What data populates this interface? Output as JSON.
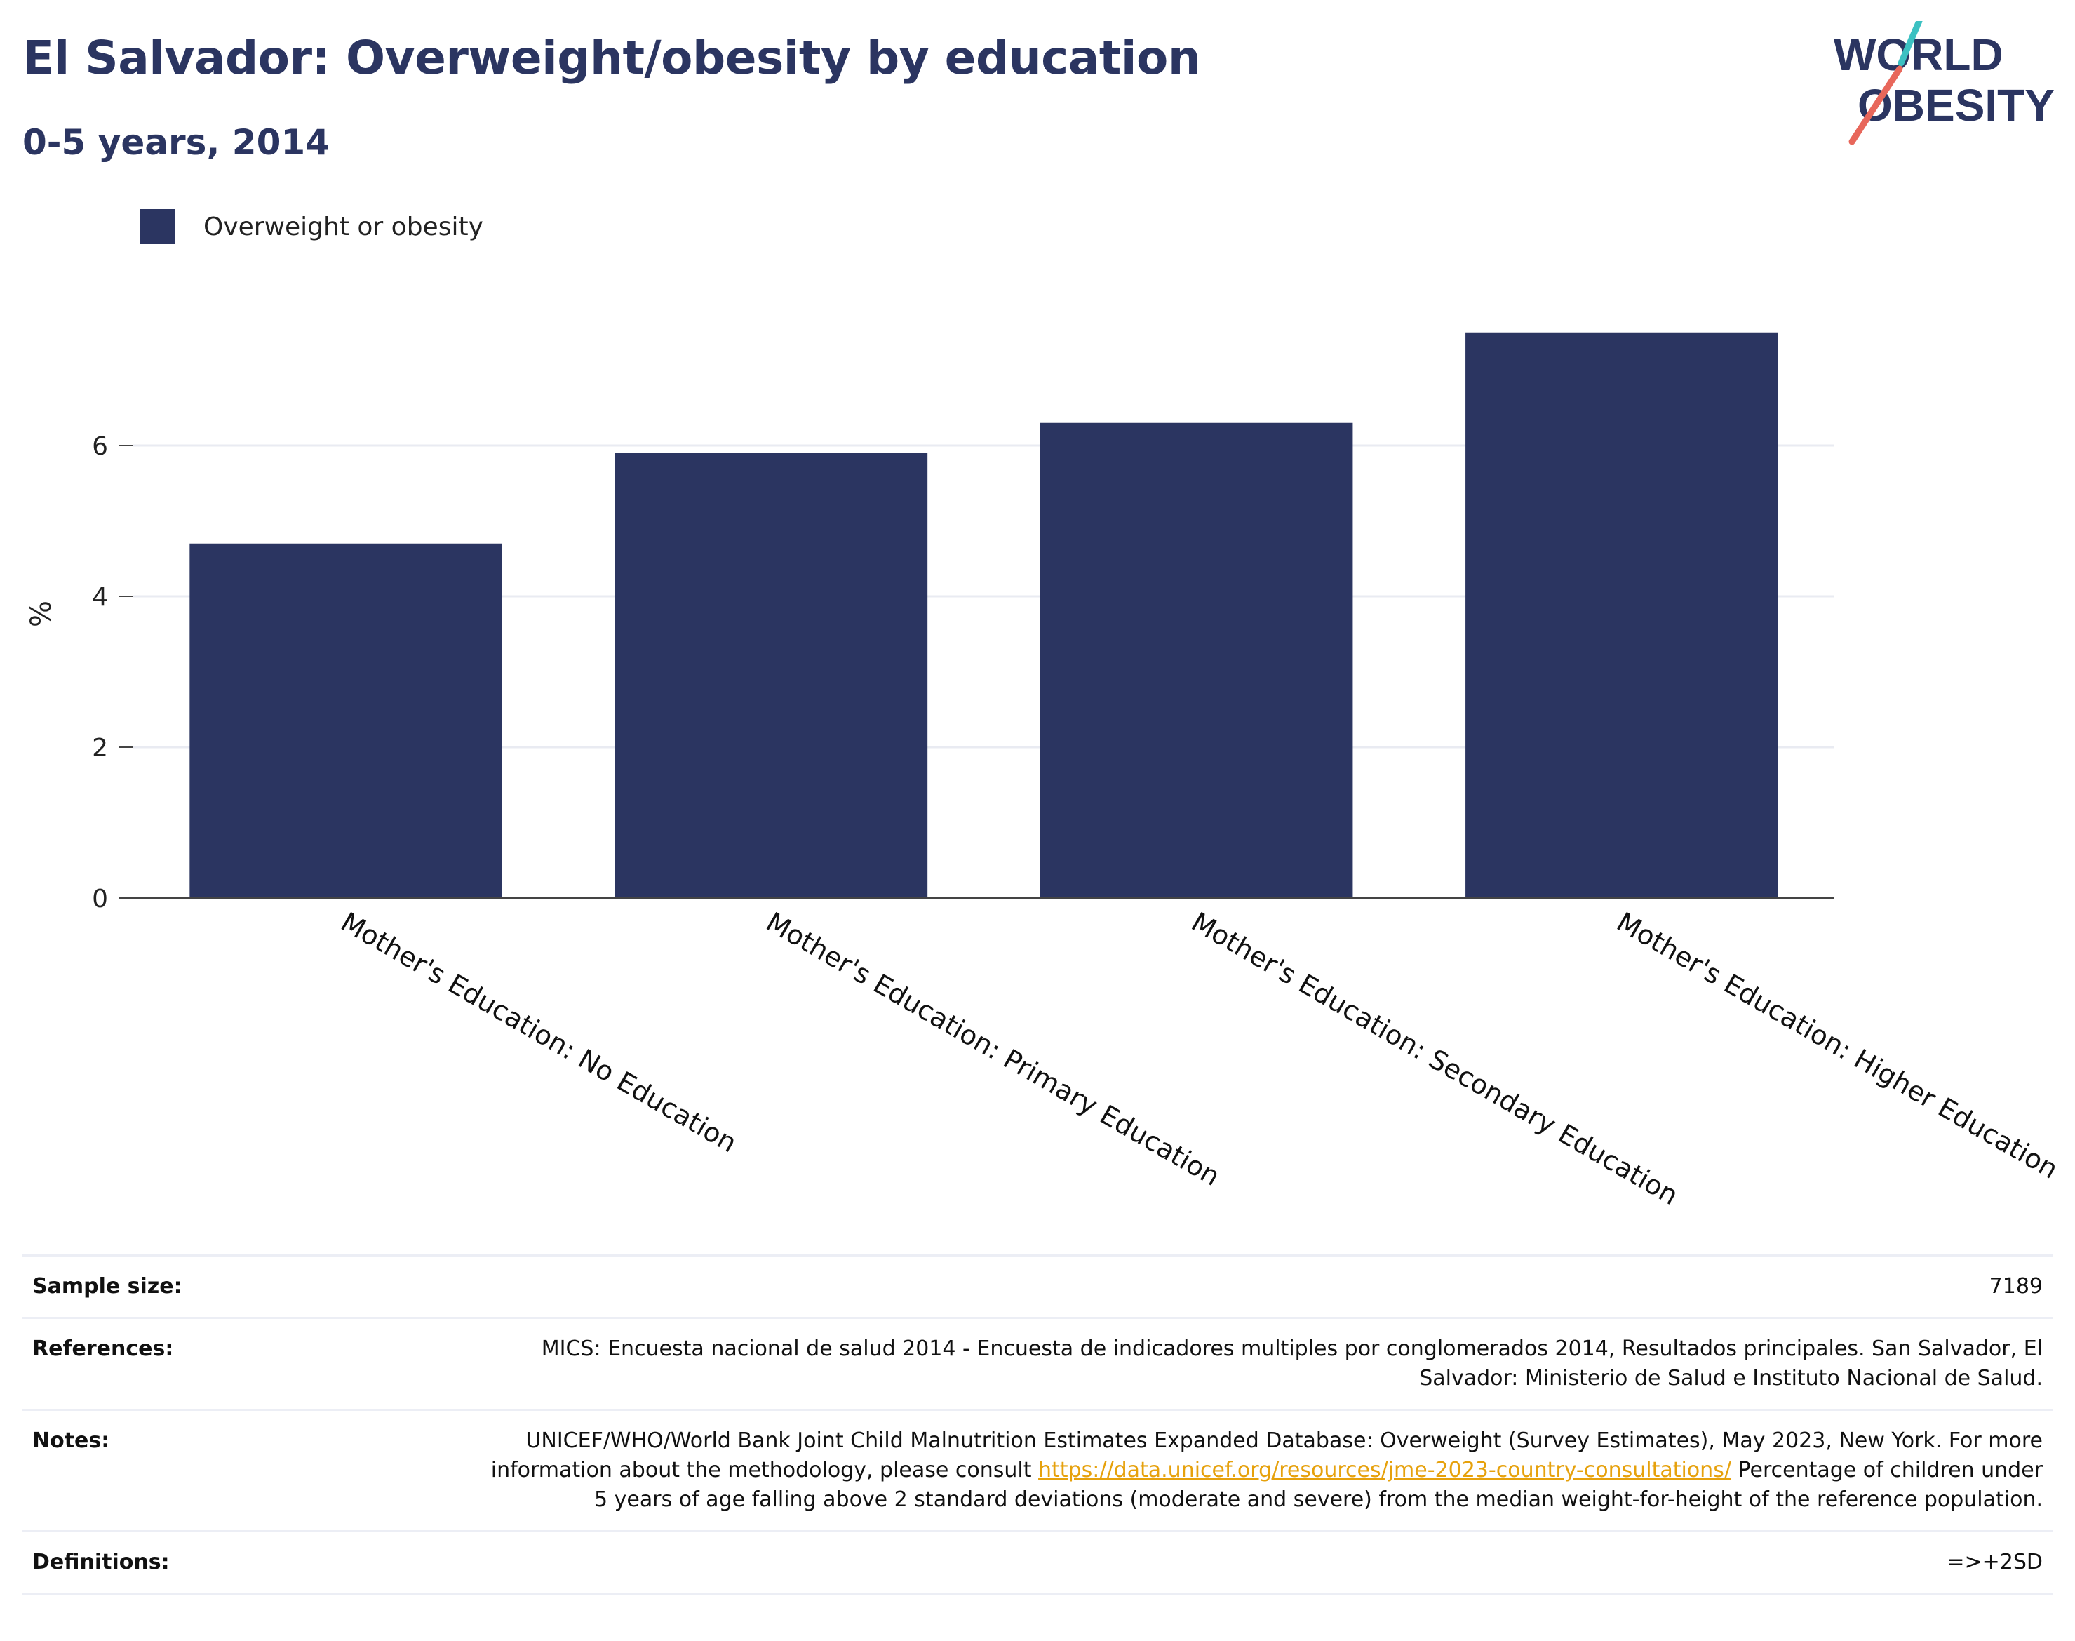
{
  "header": {
    "title": "El Salvador: Overweight/obesity by education",
    "subtitle": "0-5 years, 2014"
  },
  "logo": {
    "line1": "WORLD",
    "line2": "OBESITY",
    "colors": {
      "text": "#2b3561",
      "slash_top": "#3cc1c2",
      "slash_bottom": "#e8675b"
    }
  },
  "legend": {
    "label": "Overweight or obesity",
    "color": "#2b3561"
  },
  "chart_data": {
    "type": "bar",
    "categories": [
      "Mother's Education: No Education",
      "Mother's Education: Primary Education",
      "Mother's Education: Secondary Education",
      "Mother's Education: Higher Education"
    ],
    "series": [
      {
        "name": "Overweight or obesity",
        "values": [
          4.7,
          5.9,
          6.3,
          7.5
        ],
        "color": "#2b3561"
      }
    ],
    "ylabel": "%",
    "xlabel": "",
    "ylim": [
      0,
      8
    ],
    "yticks": [
      0,
      2,
      4,
      6
    ],
    "grid": true,
    "legend_position": "top-left"
  },
  "meta": {
    "sample_size_label": "Sample size:",
    "sample_size": "7189",
    "references_label": "References:",
    "references": "MICS: Encuesta nacional de salud 2014 - Encuesta de indicadores multiples por conglomerados 2014, Resultados principales. San Salvador, El Salvador: Ministerio de Salud e Instituto Nacional de Salud.",
    "notes_label": "Notes:",
    "notes_before_link": "UNICEF/WHO/World Bank Joint Child Malnutrition Estimates Expanded Database: Overweight (Survey Estimates), May 2023, New York. For more information about the methodology, please consult ",
    "notes_link": "https://data.unicef.org/resources/jme-2023-country-consultations/",
    "notes_after_link": " Percentage of children under 5 years of age falling above 2 standard deviations (moderate and severe) from the median weight-for-height of the reference population.",
    "definitions_label": "Definitions:",
    "definitions": "=>+2SD"
  }
}
